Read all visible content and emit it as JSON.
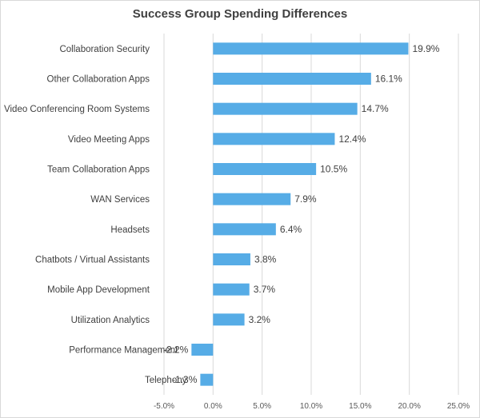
{
  "chart_data": {
    "type": "bar",
    "orientation": "horizontal",
    "title": "Success Group Spending Differences",
    "xlabel": "",
    "ylabel": "",
    "categories": [
      "Collaboration Security",
      "Other Collaboration Apps",
      "Video Conferencing Room Systems",
      "Video Meeting Apps",
      "Team Collaboration Apps",
      "WAN Services",
      "Headsets",
      "Chatbots / Virtual Assistants",
      "Mobile App Development",
      "Utilization Analytics",
      "Performance Management",
      "Telephony"
    ],
    "values": [
      19.9,
      16.1,
      14.7,
      12.4,
      10.5,
      7.9,
      6.4,
      3.8,
      3.7,
      3.2,
      -2.2,
      -1.3
    ],
    "value_labels": [
      "19.9%",
      "16.1%",
      "14.7%",
      "12.4%",
      "10.5%",
      "7.9%",
      "6.4%",
      "3.8%",
      "3.7%",
      "3.2%",
      "-2.2%",
      "-1.3%"
    ],
    "xlim": [
      -5,
      25
    ],
    "x_ticks": [
      -5,
      0,
      5,
      10,
      15,
      20,
      25
    ],
    "x_tick_labels": [
      "-5.0%",
      "0.0%",
      "5.0%",
      "10.0%",
      "15.0%",
      "20.0%",
      "25.0%"
    ],
    "grid": true,
    "bar_color": "#56ACE6",
    "legend": "none"
  }
}
